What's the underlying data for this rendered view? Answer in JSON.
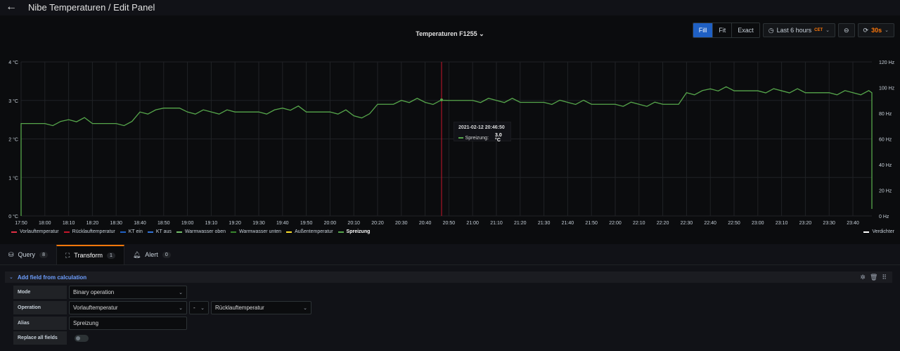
{
  "header": {
    "back_icon": "arrow-left-icon",
    "title": "Nibe Temperaturen / Edit Panel"
  },
  "toolbar": {
    "fill": "Fill",
    "fit": "Fit",
    "exact": "Exact",
    "time_range": "Last 6 hours",
    "tz": "CET",
    "refresh_interval": "30s"
  },
  "panel": {
    "title": "Temperaturen F1255 ⌄"
  },
  "chart_data": {
    "type": "line",
    "title": "Temperaturen F1255",
    "x": [
      "17:50",
      "18:00",
      "18:10",
      "18:20",
      "18:30",
      "18:40",
      "18:50",
      "19:00",
      "19:10",
      "19:20",
      "19:30",
      "19:40",
      "19:50",
      "20:00",
      "20:10",
      "20:20",
      "20:30",
      "20:40",
      "20:50",
      "21:00",
      "21:10",
      "21:20",
      "21:30",
      "21:40",
      "21:50",
      "22:00",
      "22:10",
      "22:20",
      "22:30",
      "22:40",
      "22:50",
      "23:00",
      "23:10",
      "23:20",
      "23:30",
      "23:40"
    ],
    "y_left_ticks": [
      "0 °C",
      "1 °C",
      "2 °C",
      "3 °C",
      "4 °C"
    ],
    "y_right_ticks": [
      "0 Hz",
      "20 Hz",
      "40 Hz",
      "60 Hz",
      "80 Hz",
      "100 Hz",
      "120 Hz"
    ],
    "ylim": [
      0,
      4
    ],
    "series": [
      {
        "name": "Spreizung",
        "color": "#37872d",
        "values": [
          2.4,
          2.4,
          2.5,
          2.4,
          2.4,
          2.7,
          2.8,
          2.7,
          2.7,
          2.7,
          2.7,
          2.8,
          2.7,
          2.7,
          2.6,
          2.9,
          3.0,
          2.95,
          3.0,
          3.0,
          3.0,
          2.95,
          2.95,
          2.95,
          2.9,
          2.9,
          2.9,
          2.9,
          3.2,
          3.3,
          3.25,
          3.25,
          3.25,
          3.2,
          3.2,
          3.2
        ]
      }
    ],
    "grid": true,
    "crosshair_time": "20:46:50"
  },
  "legend": [
    {
      "name": "Vorlauftemperatur",
      "color": "#e02f44"
    },
    {
      "name": "Rücklauftemperatur",
      "color": "#c4162a"
    },
    {
      "name": "KT ein",
      "color": "#1f60c4"
    },
    {
      "name": "KT aus",
      "color": "#3274d9"
    },
    {
      "name": "Warmwasser oben",
      "color": "#73bf69"
    },
    {
      "name": "Warmwasser unten",
      "color": "#37872d"
    },
    {
      "name": "Außentemperatur",
      "color": "#fade2a"
    },
    {
      "name": "Spreizung",
      "color": "#56a64b"
    }
  ],
  "legend_right": {
    "name": "Verdichter",
    "color": "#ffffff"
  },
  "tooltip": {
    "time": "2021-02-12 20:46:50",
    "series": "Spreizung:",
    "value": "3.0 °C"
  },
  "tabs": [
    {
      "label": "Query",
      "count": "8",
      "icon": "database-icon"
    },
    {
      "label": "Transform",
      "count": "1",
      "icon": "transform-icon"
    },
    {
      "label": "Alert",
      "count": "0",
      "icon": "bell-icon"
    }
  ],
  "transform": {
    "section_title": "Add field from calculation",
    "mode_label": "Mode",
    "mode_value": "Binary operation",
    "operation_label": "Operation",
    "operation_left": "Vorlauftemperatur",
    "operator": "-",
    "operation_right": "Rücklauftemperatur",
    "alias_label": "Alias",
    "alias_value": "Spreizung",
    "replace_label": "Replace all fields"
  }
}
